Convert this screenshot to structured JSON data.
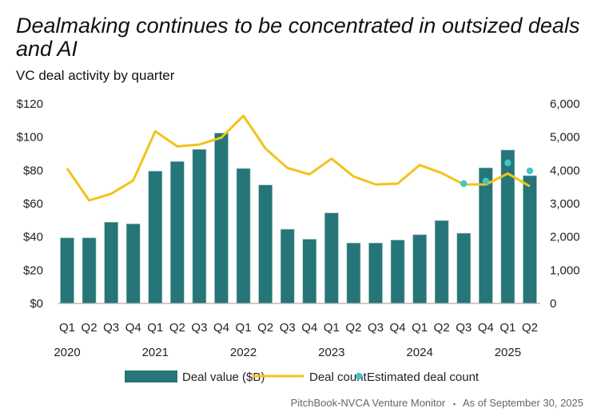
{
  "chart_data": {
    "type": "bar",
    "title": "Dealmaking continues to be concentrated in outsized deals and AI",
    "subtitle": "VC deal activity by quarter",
    "categories": [
      "Q1",
      "Q2",
      "Q3",
      "Q4",
      "Q1",
      "Q2",
      "Q3",
      "Q4",
      "Q1",
      "Q2",
      "Q3",
      "Q4",
      "Q1",
      "Q2",
      "Q3",
      "Q4",
      "Q1",
      "Q2",
      "Q3",
      "Q4",
      "Q1",
      "Q2"
    ],
    "years": [
      {
        "label": "2020",
        "index": 0
      },
      {
        "label": "2021",
        "index": 4
      },
      {
        "label": "2022",
        "index": 8
      },
      {
        "label": "2023",
        "index": 12
      },
      {
        "label": "2024",
        "index": 16
      },
      {
        "label": "2025",
        "index": 20
      }
    ],
    "series": [
      {
        "name": "Deal value ($B)",
        "type": "bar",
        "axis": "left",
        "color": "#267578",
        "values": [
          39.4,
          39.4,
          48.8,
          47.8,
          79.5,
          85.3,
          92.6,
          102.4,
          81.1,
          71.2,
          44.6,
          38.6,
          54.4,
          36.3,
          36.3,
          38.1,
          41.3,
          49.8,
          42.2,
          81.5,
          92.2,
          76.8
        ]
      },
      {
        "name": "Deal count",
        "type": "line",
        "axis": "right",
        "color": "#F2C318",
        "values": [
          4056,
          3096,
          3296,
          3696,
          5176,
          4720,
          4776,
          4984,
          5640,
          4656,
          4072,
          3880,
          4352,
          3816,
          3576,
          3600,
          4160,
          3920,
          3576,
          3576,
          3904,
          3520
        ]
      },
      {
        "name": "Estimated deal count",
        "type": "scatter",
        "axis": "right",
        "color": "#45C3C8",
        "values": [
          null,
          null,
          null,
          null,
          null,
          null,
          null,
          null,
          null,
          null,
          null,
          null,
          null,
          null,
          null,
          null,
          null,
          null,
          3600,
          3680,
          4224,
          3984
        ]
      }
    ],
    "left_axis": {
      "ylim": [
        0,
        120
      ],
      "ticks": [
        "$0",
        "$20",
        "$40",
        "$60",
        "$80",
        "$100",
        "$120"
      ]
    },
    "right_axis": {
      "ylim": [
        0,
        6000
      ],
      "ticks": [
        "0",
        "1,000",
        "2,000",
        "3,000",
        "4,000",
        "5,000",
        "6,000"
      ]
    },
    "legend": [
      "Deal value ($B)",
      "Deal count",
      "Estimated deal count"
    ],
    "legend_position": "bottom",
    "grid": false
  },
  "footer": {
    "source": "PitchBook-NVCA Venture Monitor",
    "separator": "▪",
    "date": "As of September 30, 2025"
  }
}
